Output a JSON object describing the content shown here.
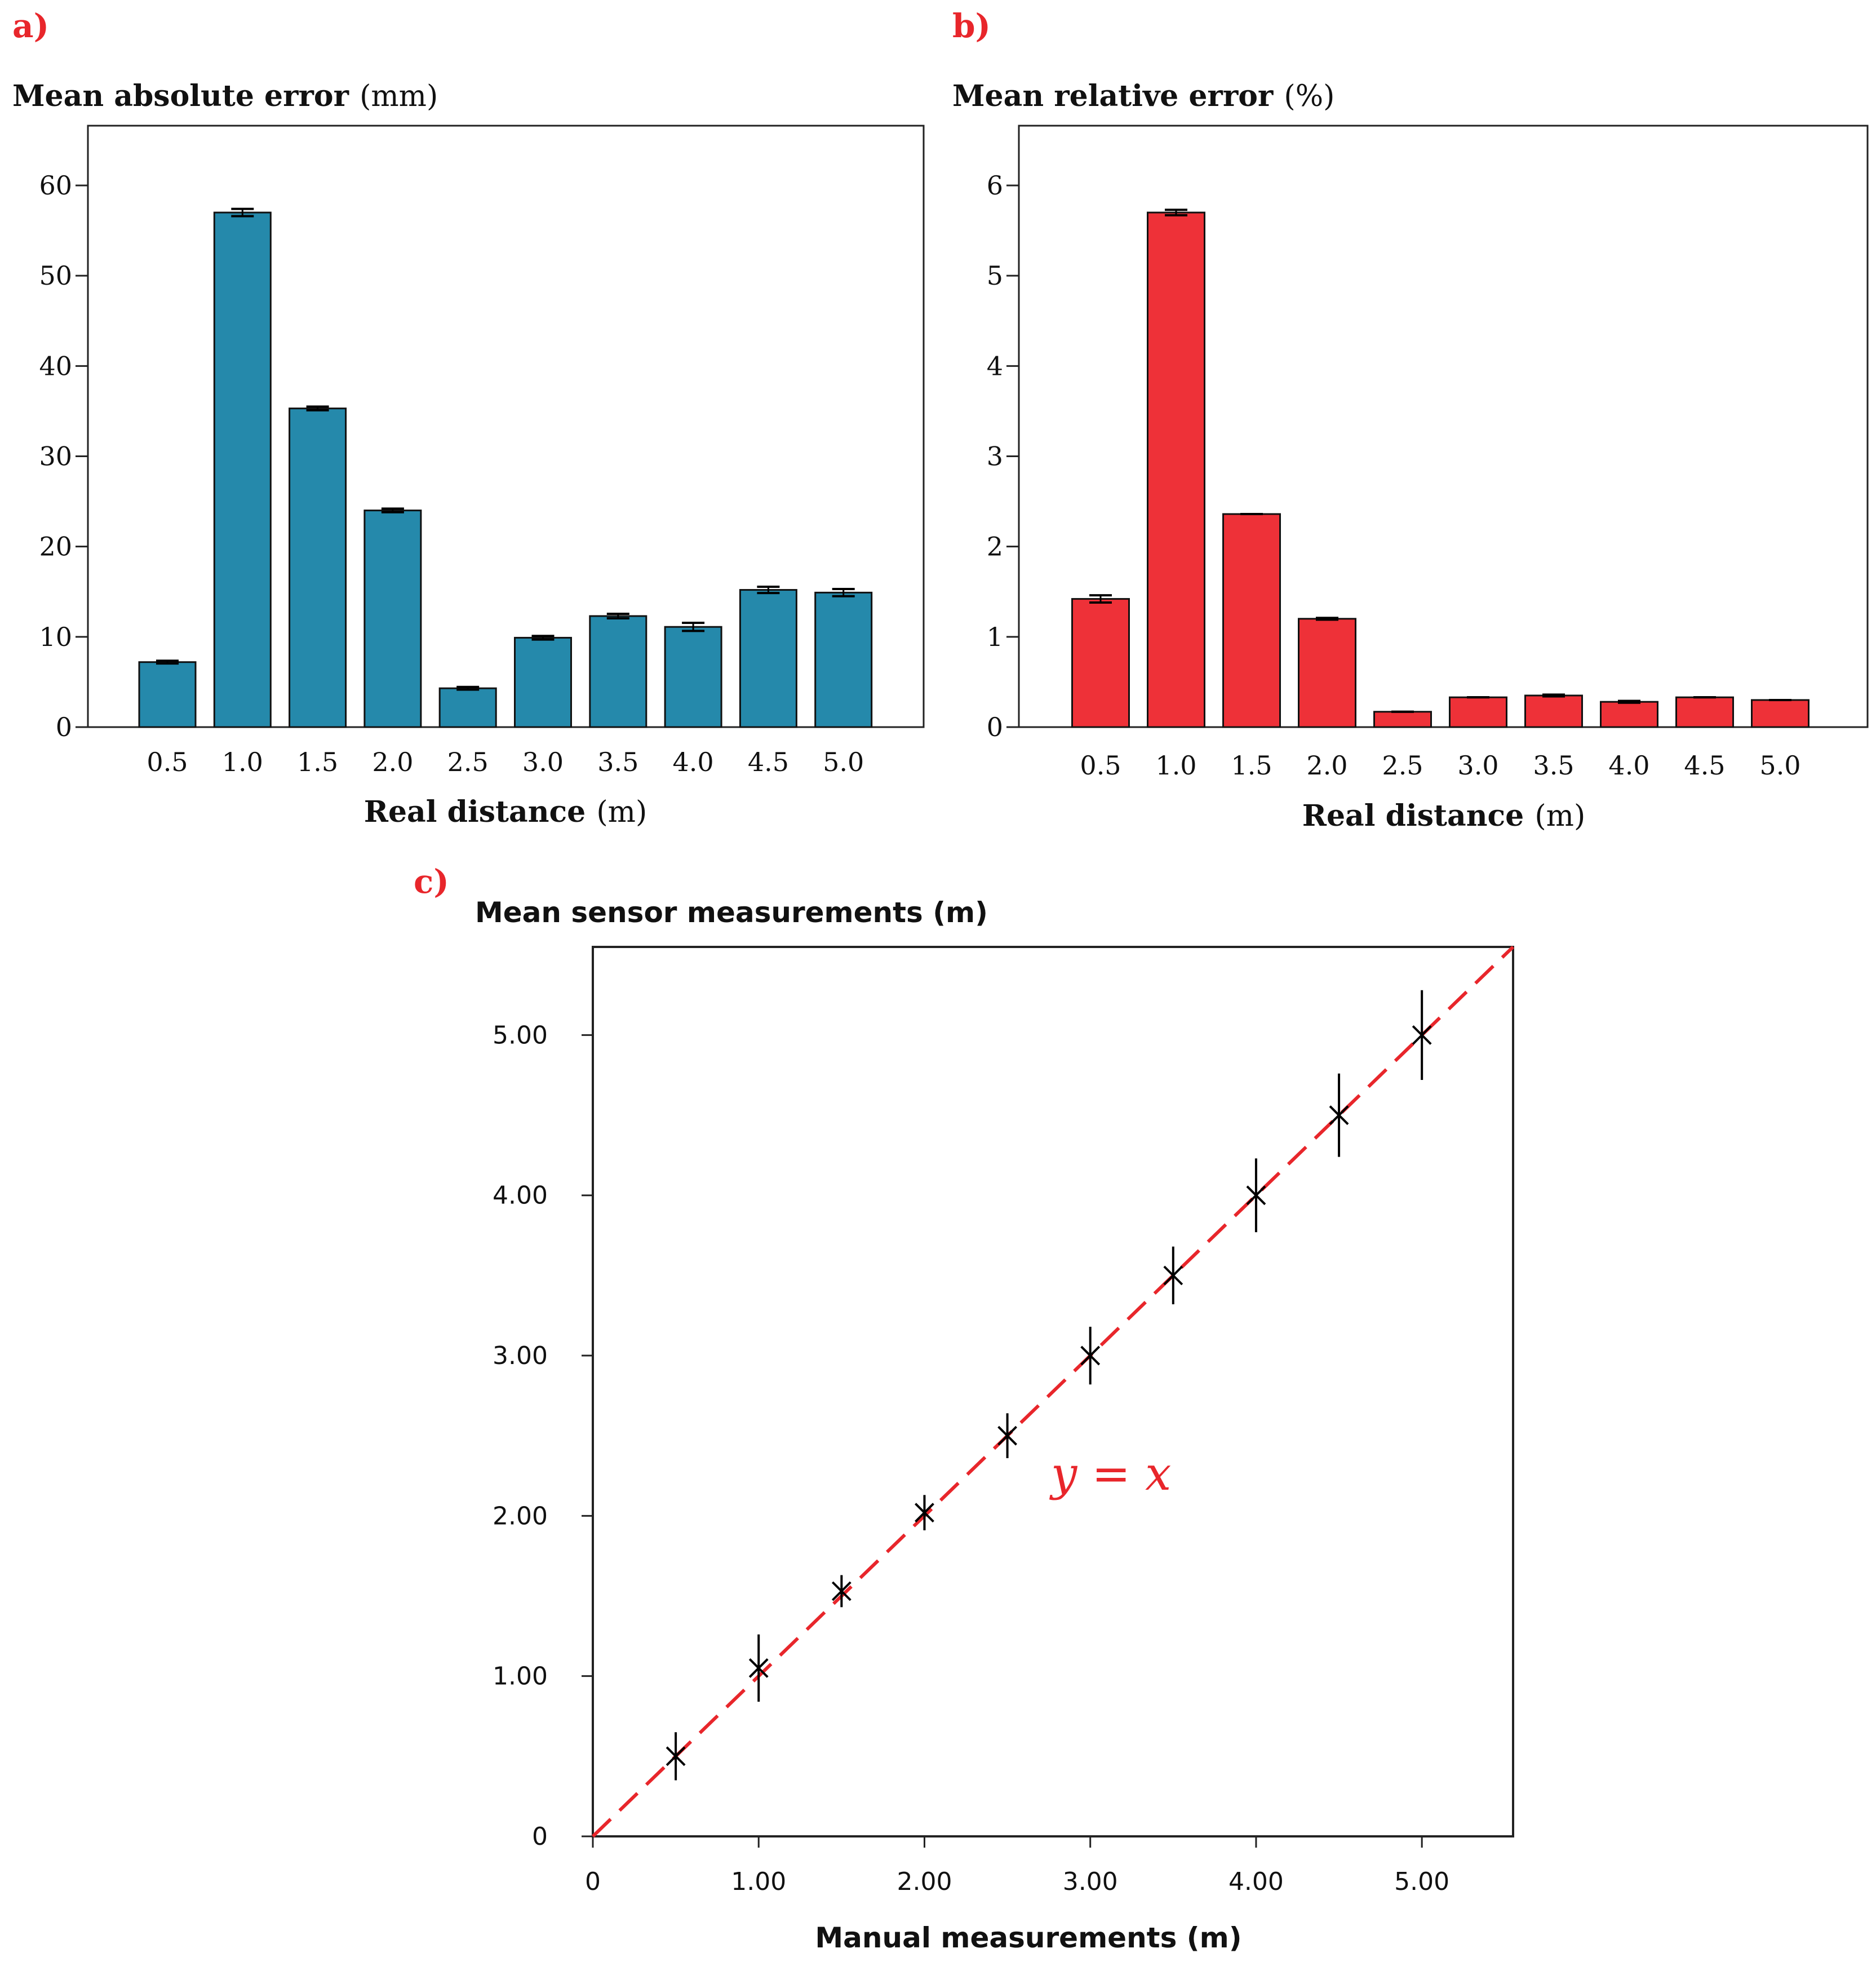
{
  "panels": {
    "a": {
      "letter": "a)"
    },
    "b": {
      "letter": "b)"
    },
    "c": {
      "letter": "c)"
    }
  },
  "letter_color": "#e8262b",
  "chart_data": [
    {
      "type": "bar",
      "panel": "a",
      "title_bold": "Mean absolute error",
      "title_unit": "(mm)",
      "xlabel_bold": "Real distance",
      "xlabel_unit": "(m)",
      "categories": [
        "0.5",
        "1.0",
        "1.5",
        "2.0",
        "2.5",
        "3.0",
        "3.5",
        "4.0",
        "4.5",
        "5.0"
      ],
      "values": [
        7.2,
        57.0,
        35.3,
        24.0,
        4.3,
        9.9,
        12.3,
        11.1,
        15.2,
        14.9
      ],
      "errors": [
        0.15,
        0.4,
        0.2,
        0.2,
        0.15,
        0.2,
        0.25,
        0.45,
        0.35,
        0.4
      ],
      "yticks": [
        "0",
        "10",
        "20",
        "30",
        "40",
        "50",
        "60"
      ],
      "ylim": [
        0,
        65
      ],
      "bar_color": "#2589ab",
      "grid": false
    },
    {
      "type": "bar",
      "panel": "b",
      "title_bold": "Mean relative error",
      "title_unit": "(%)",
      "xlabel_bold": "Real distance",
      "xlabel_unit": "(m)",
      "categories": [
        "0.5",
        "1.0",
        "1.5",
        "2.0",
        "2.5",
        "3.0",
        "3.5",
        "4.0",
        "4.5",
        "5.0"
      ],
      "values": [
        1.42,
        5.7,
        2.36,
        1.2,
        0.17,
        0.33,
        0.35,
        0.28,
        0.33,
        0.3
      ],
      "errors": [
        0.04,
        0.03,
        0.0,
        0.01,
        0.0,
        0.0,
        0.01,
        0.01,
        0.0,
        0.0
      ],
      "yticks": [
        "0",
        "1",
        "2",
        "3",
        "4",
        "5",
        "6"
      ],
      "ylim": [
        0,
        6.5
      ],
      "bar_color": "#ee3138",
      "grid": false
    },
    {
      "type": "scatter",
      "panel": "c",
      "title": "Mean sensor measurements (m)",
      "xlabel": "Manual measurements (m)",
      "ylabel": "",
      "x": [
        0.5,
        1.0,
        1.5,
        2.0,
        2.5,
        3.0,
        3.5,
        4.0,
        4.5,
        5.0
      ],
      "y": [
        0.5,
        1.05,
        1.53,
        2.02,
        2.5,
        3.0,
        3.5,
        4.0,
        4.5,
        5.0
      ],
      "yerr": [
        0.15,
        0.21,
        0.1,
        0.11,
        0.14,
        0.18,
        0.18,
        0.23,
        0.26,
        0.28
      ],
      "xticks": [
        "0",
        "1.00",
        "2.00",
        "3.00",
        "4.00",
        "5.00"
      ],
      "yticks": [
        "0",
        "1.00",
        "2.00",
        "3.00",
        "4.00",
        "5.00"
      ],
      "xlim": [
        0,
        5.55
      ],
      "ylim": [
        0,
        5.55
      ],
      "reference_line": {
        "label": "y = x",
        "color": "#e8262b",
        "style": "dashed"
      },
      "marker": "x",
      "grid": false
    }
  ]
}
